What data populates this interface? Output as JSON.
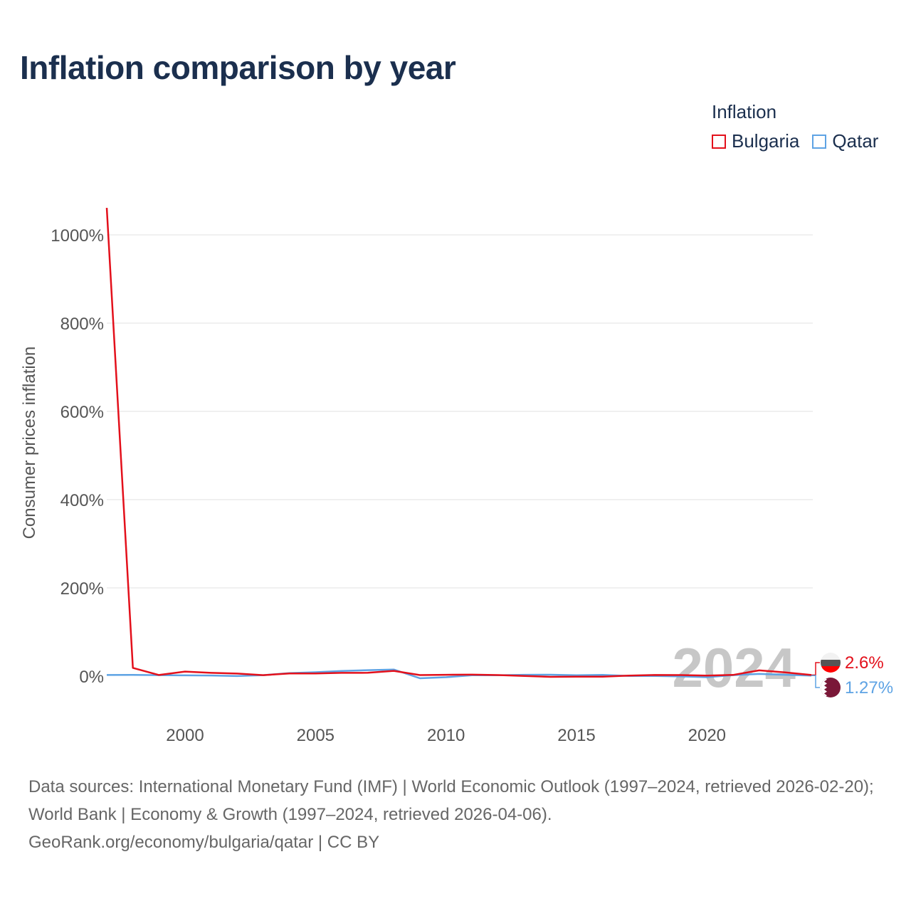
{
  "title": "Inflation comparison by year",
  "legend": {
    "title": "Inflation",
    "items": [
      {
        "name": "Bulgaria",
        "color": "#e3101b"
      },
      {
        "name": "Qatar",
        "color": "#5ea3e4"
      }
    ]
  },
  "chart_data": {
    "type": "line",
    "title": "Inflation comparison by year",
    "xlabel": "",
    "ylabel": "Consumer prices inflation",
    "xlim": [
      1997,
      2024
    ],
    "ylim": [
      -100,
      1060
    ],
    "yticks": [
      0,
      200,
      400,
      600,
      800,
      1000
    ],
    "ytick_labels": [
      "0%",
      "200%",
      "400%",
      "600%",
      "800%",
      "1000%"
    ],
    "xticks": [
      2000,
      2005,
      2010,
      2015,
      2020
    ],
    "xtick_labels": [
      "2000",
      "2005",
      "2010",
      "2015",
      "2020"
    ],
    "x": [
      1997,
      1998,
      1999,
      2000,
      2001,
      2002,
      2003,
      2004,
      2005,
      2006,
      2007,
      2008,
      2009,
      2010,
      2011,
      2012,
      2013,
      2014,
      2015,
      2016,
      2017,
      2018,
      2019,
      2020,
      2021,
      2022,
      2023,
      2024
    ],
    "series": [
      {
        "name": "Bulgaria",
        "color": "#e3101b",
        "values": [
          1061.2,
          18.7,
          2.6,
          10.3,
          7.4,
          5.8,
          2.3,
          6.1,
          6.0,
          7.4,
          7.6,
          12.0,
          2.5,
          3.0,
          3.4,
          2.4,
          0.4,
          -1.6,
          -1.1,
          -1.3,
          1.2,
          2.6,
          2.5,
          1.2,
          2.8,
          13.0,
          8.6,
          2.6
        ]
      },
      {
        "name": "Qatar",
        "color": "#5ea3e4",
        "values": [
          2.6,
          2.9,
          2.2,
          1.7,
          1.4,
          0.2,
          2.3,
          6.8,
          8.8,
          11.8,
          13.6,
          15.0,
          -4.9,
          -2.4,
          1.9,
          1.9,
          3.1,
          3.3,
          1.9,
          2.7,
          0.4,
          0.3,
          -0.7,
          -2.5,
          2.3,
          5.0,
          3.1,
          1.27
        ]
      }
    ],
    "year_label": "2024",
    "end_labels": [
      {
        "name": "Bulgaria",
        "text": "2.6%",
        "color": "#e3101b"
      },
      {
        "name": "Qatar",
        "text": "1.27%",
        "color": "#5ea3e4"
      }
    ]
  },
  "footer": {
    "line1": "Data sources: International Monetary Fund (IMF) | World Economic Outlook (1997–2024, retrieved 2026-02-20); World Bank | Economy & Growth (1997–2024, retrieved 2026-04-06).",
    "line2": "GeoRank.org/economy/bulgaria/qatar | CC BY"
  }
}
